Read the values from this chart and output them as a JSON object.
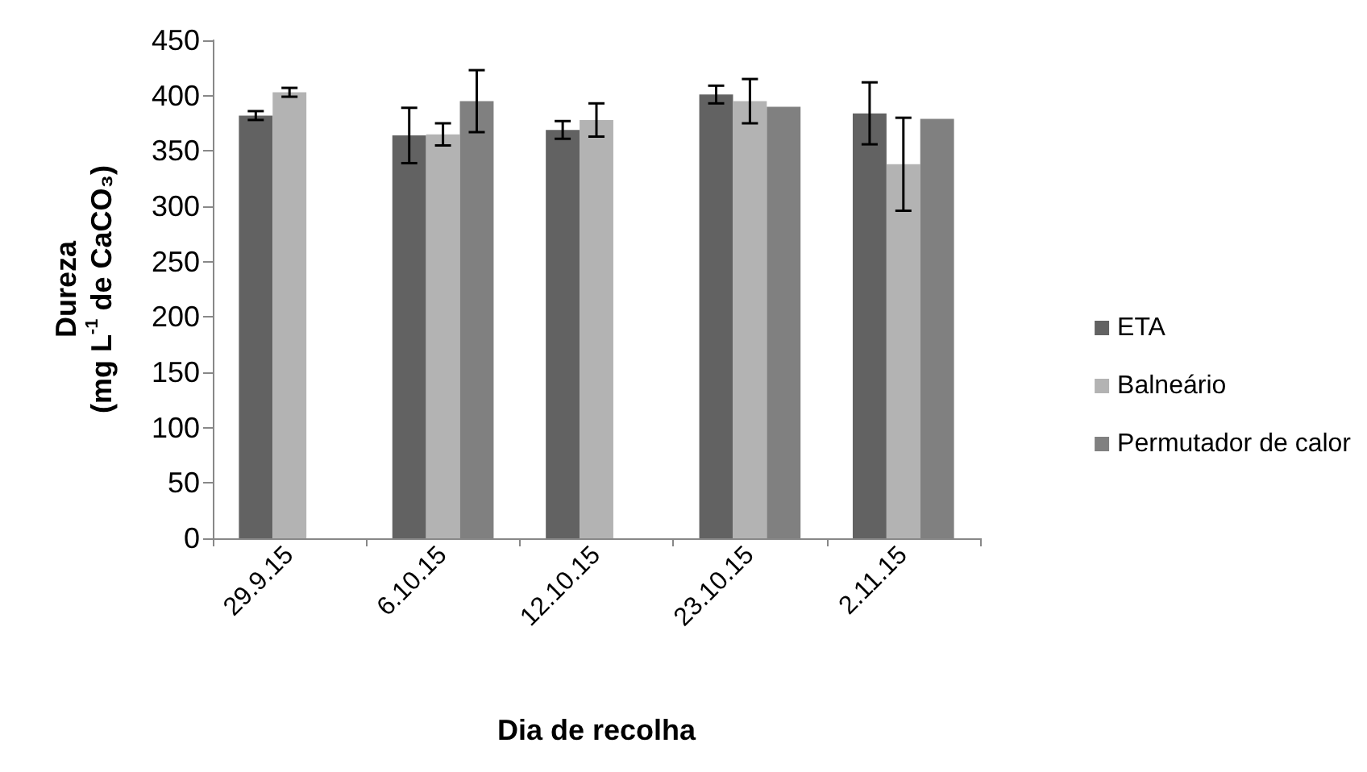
{
  "chart_data": {
    "type": "bar",
    "xlabel": "Dia de recolha",
    "ylabel": "Dureza\n(mg L$^{-1}$ de CaCO₃)",
    "categories": [
      "29.9.15",
      "6.10.15",
      "12.10.15",
      "23.10.15",
      "2.11.15"
    ],
    "series": [
      {
        "name": "ETA",
        "color": "#626262",
        "values": [
          382,
          364,
          369,
          401,
          384
        ],
        "errors": [
          4,
          25,
          8,
          8,
          28
        ]
      },
      {
        "name": "Balneário",
        "color": "#b3b3b3",
        "values": [
          403,
          365,
          378,
          395,
          338
        ],
        "errors": [
          4,
          10,
          15,
          20,
          42
        ]
      },
      {
        "name": "Permutador de calor",
        "color": "#808080",
        "values": [
          null,
          395,
          null,
          390,
          379
        ],
        "errors": [
          null,
          28,
          null,
          null,
          null
        ]
      }
    ],
    "ylim": [
      0,
      450
    ],
    "yticks": [
      0,
      50,
      100,
      150,
      200,
      250,
      300,
      350,
      400,
      450
    ],
    "grid": false,
    "legend": "right"
  }
}
